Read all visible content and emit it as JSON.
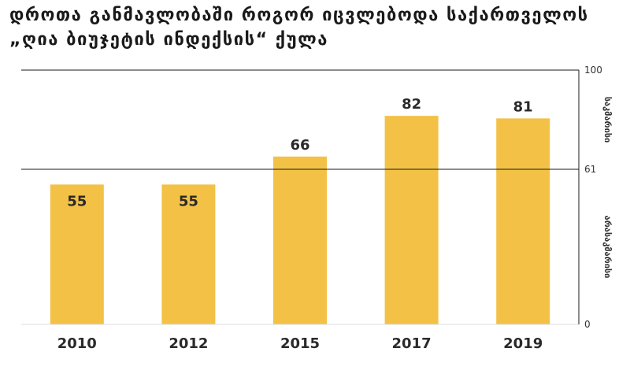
{
  "title_lines": [
    "დროთა განმავლობაში როგორ იცვლებოდა საქართველოს",
    "„ღია ბიუჯეტის ინდექსის“ ქულა"
  ],
  "chart_data": {
    "type": "bar",
    "categories": [
      "2010",
      "2012",
      "2015",
      "2017",
      "2019"
    ],
    "values": [
      55,
      55,
      66,
      82,
      81
    ],
    "ylim": [
      0,
      100
    ],
    "yticks": [
      0,
      61,
      100
    ],
    "reference_line": 61,
    "zone_labels": {
      "upper": "საკმარისი",
      "lower": "არასაკმარისი"
    },
    "colors": {
      "bar": "#F3C145",
      "line": "#1a1a1a",
      "text": "#2a2a2a"
    },
    "grid": false,
    "legend": "none"
  }
}
